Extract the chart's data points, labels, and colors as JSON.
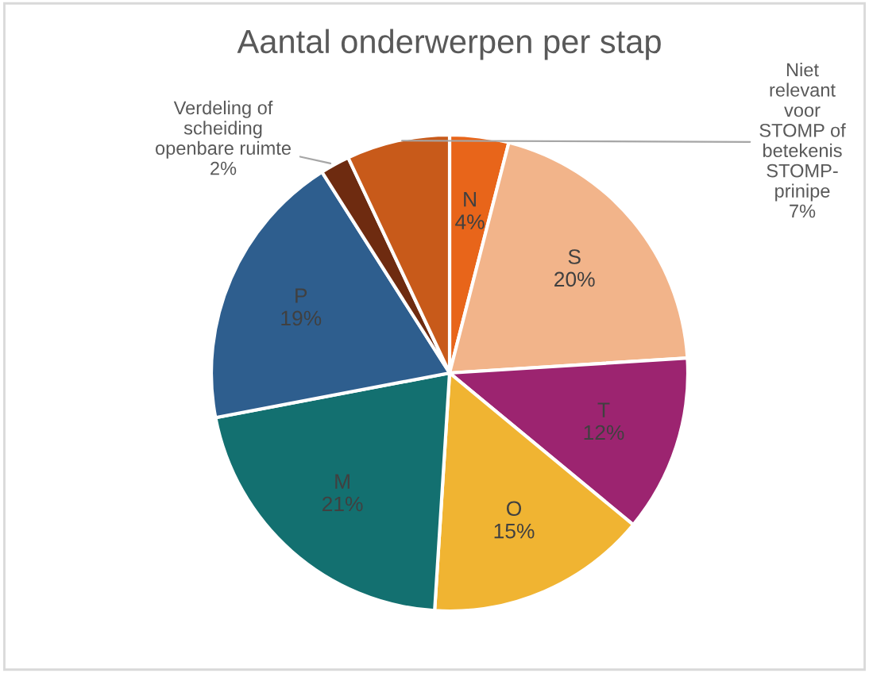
{
  "chart_data": {
    "type": "pie",
    "title": "Aantal onderwerpen per stap",
    "categories": [
      "N",
      "S",
      "T",
      "O",
      "M",
      "P",
      "Verdeling of\nscheiding\nopenbare ruimte",
      "Niet\nrelevant\nvoor\nSTOMP of\nbetekenis\nSTOMP-\nprinipe"
    ],
    "values": [
      4,
      20,
      12,
      15,
      21,
      19,
      2,
      7
    ],
    "value_labels": [
      "4%",
      "20%",
      "12%",
      "15%",
      "21%",
      "19%",
      "2%",
      "7%"
    ],
    "colors": [
      "#e8651a",
      "#f2b48a",
      "#9c2470",
      "#f0b432",
      "#137070",
      "#2e5e8e",
      "#6e2b10",
      "#c85a1a"
    ],
    "legend": false
  }
}
